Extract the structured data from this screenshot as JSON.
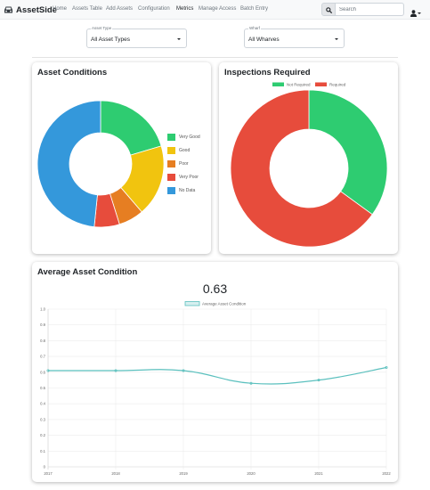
{
  "navbar": {
    "brand": "AssetSide",
    "links": [
      {
        "label": "Home",
        "active": false
      },
      {
        "label": "Assets Table",
        "active": false
      },
      {
        "label": "Add Assets",
        "active": false
      },
      {
        "label": "Configuration",
        "active": false
      },
      {
        "label": "Metrics",
        "active": true
      },
      {
        "label": "Manage Access",
        "active": false
      },
      {
        "label": "Batch Entry",
        "active": false
      }
    ],
    "search_placeholder": "Search"
  },
  "filters": {
    "asset_type": {
      "label": "Asset Type",
      "value": "All Asset Types"
    },
    "wharf": {
      "label": "Wharf",
      "value": "All Wharves"
    }
  },
  "asset_conditions": {
    "title": "Asset Conditions",
    "chart_data": {
      "type": "pie",
      "variant": "doughnut",
      "labels": [
        "Very Good",
        "Good",
        "Poor",
        "Very Poor",
        "No Data"
      ],
      "values": [
        19,
        17,
        6,
        6,
        45
      ],
      "colors": [
        "#2ecc71",
        "#f1c40f",
        "#e67e22",
        "#e74c3c",
        "#3498db"
      ],
      "legend_position": "right"
    }
  },
  "inspections_required": {
    "title": "Inspections Required",
    "chart_data": {
      "type": "pie",
      "variant": "doughnut",
      "labels": [
        "Not Required",
        "Required"
      ],
      "values": [
        35,
        65
      ],
      "colors": [
        "#2ecc71",
        "#e74c3c"
      ],
      "legend_position": "top"
    }
  },
  "average_condition": {
    "title": "Average Asset Condition",
    "current_value": "0.63",
    "chart_data": {
      "type": "line",
      "series": [
        {
          "name": "Average Asset Condition",
          "values": [
            0.61,
            0.61,
            0.61,
            0.53,
            0.55,
            0.63
          ]
        }
      ],
      "x": [
        "2017",
        "2018",
        "2019",
        "2020",
        "2021",
        "2022"
      ],
      "yticks": [
        "0",
        "0.1",
        "0.2",
        "0.3",
        "0.4",
        "0.5",
        "0.6",
        "0.7",
        "0.8",
        "0.9",
        "1.0"
      ],
      "ylim": [
        0,
        1
      ],
      "color": "#5bc0be",
      "grid": true,
      "legend_position": "top"
    }
  }
}
